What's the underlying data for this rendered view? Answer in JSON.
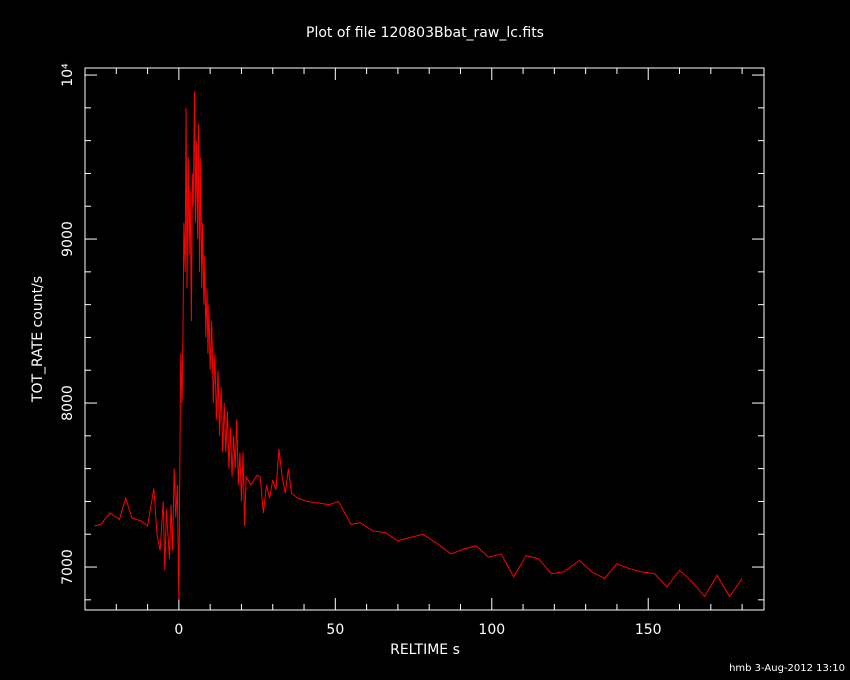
{
  "chart_data": {
    "type": "line",
    "title": "Plot of file 120803Bbat_raw_lc.fits",
    "x_label": "RELTIME  s",
    "y_label": "TOT_RATE  count/s",
    "footer": "hmb  3-Aug-2012 13:10",
    "xlim": [
      -30,
      187
    ],
    "ylim": [
      6738,
      10043
    ],
    "xticks": [
      0,
      50,
      100,
      150
    ],
    "yticks": [
      7000,
      8000,
      9000,
      {
        "value": 10000,
        "label": "10⁴"
      }
    ],
    "xminorticks": [
      -20,
      -10,
      10,
      20,
      30,
      40,
      60,
      70,
      80,
      90,
      110,
      120,
      130,
      140,
      160,
      170,
      180
    ],
    "yminorticks": [
      6800,
      7200,
      7400,
      7600,
      7800,
      8200,
      8400,
      8600,
      8800,
      9200,
      9400,
      9600,
      9800
    ],
    "series": [
      {
        "name": "TOT_RATE",
        "color": "#ff0000",
        "x": [
          -27,
          -25,
          -22,
          -19,
          -17,
          -15,
          -12,
          -10,
          -8,
          -7,
          -6,
          -5,
          -4.5,
          -4,
          -3,
          -2.5,
          -2,
          -1.5,
          -1,
          -0.5,
          0,
          0.3,
          0.6,
          1,
          1.3,
          1.6,
          2,
          2.3,
          2.6,
          3,
          3.3,
          3.6,
          4,
          4.3,
          4.6,
          5,
          5.3,
          5.6,
          6,
          6.3,
          6.6,
          7,
          7.3,
          7.6,
          8,
          8.3,
          8.6,
          9,
          9.3,
          9.6,
          10,
          10.5,
          11,
          11.5,
          12,
          12.5,
          13,
          13.5,
          14,
          14.5,
          15,
          15.5,
          16,
          16.5,
          17,
          17.5,
          18,
          18.5,
          19,
          19.5,
          20,
          20.5,
          21,
          21.5,
          23,
          25,
          26,
          27,
          28,
          29,
          30,
          31,
          32,
          33,
          34,
          35,
          36,
          38,
          41,
          45,
          48,
          51,
          55,
          58,
          62,
          66,
          70,
          74,
          78,
          82,
          87,
          91,
          95,
          99,
          103,
          107,
          111,
          115,
          119,
          123,
          128,
          132,
          136,
          140,
          144,
          148,
          152,
          156,
          160,
          164,
          168,
          172,
          176,
          180
        ],
        "values": [
          7250,
          7260,
          7330,
          7290,
          7420,
          7300,
          7280,
          7250,
          7480,
          7200,
          7100,
          7400,
          6980,
          7350,
          7050,
          7380,
          7100,
          7600,
          7300,
          7500,
          6800,
          7600,
          8300,
          8000,
          8400,
          9100,
          8800,
          9800,
          8700,
          9500,
          8900,
          9300,
          8500,
          9400,
          9200,
          9900,
          9100,
          9600,
          9000,
          9700,
          8800,
          9500,
          8700,
          9100,
          8600,
          8900,
          8400,
          8700,
          8300,
          8600,
          8200,
          8500,
          8000,
          8300,
          7900,
          8200,
          7800,
          8100,
          7700,
          8000,
          7700,
          7950,
          7600,
          7850,
          7550,
          7800,
          7600,
          7900,
          7500,
          7700,
          7400,
          7700,
          7250,
          7550,
          7500,
          7560,
          7550,
          7330,
          7500,
          7420,
          7530,
          7470,
          7720,
          7550,
          7450,
          7600,
          7450,
          7420,
          7400,
          7390,
          7380,
          7400,
          7260,
          7270,
          7220,
          7210,
          7160,
          7180,
          7200,
          7150,
          7080,
          7110,
          7130,
          7060,
          7080,
          6940,
          7070,
          7050,
          6960,
          6970,
          7040,
          6970,
          6930,
          7020,
          6990,
          6970,
          6960,
          6880,
          6980,
          6910,
          6820,
          6950,
          6820,
          6930
        ]
      }
    ]
  }
}
